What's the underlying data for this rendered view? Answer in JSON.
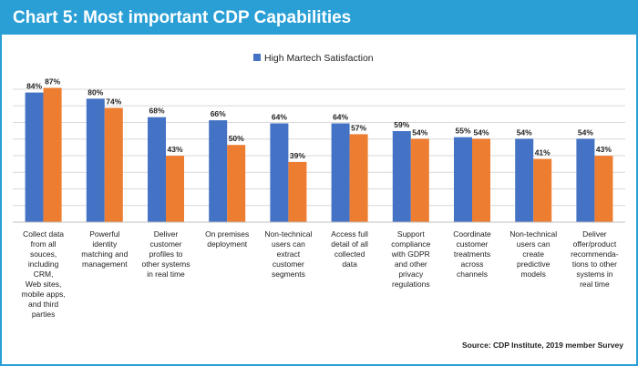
{
  "header": {
    "title": "Chart 5: Most important CDP Capabilities"
  },
  "source": "Source: CDP Institute, 2019 member Survey",
  "colors": {
    "accent": "#2a9fd6",
    "series_blue": "#4472c4",
    "series_orange": "#ed7d31",
    "grid": "#d9d9d9",
    "text": "#222222"
  },
  "chart_data": {
    "type": "bar",
    "title": "Chart 5: Most important CDP Capabilities",
    "xlabel": "",
    "ylabel": "",
    "ylim": [
      0,
      100
    ],
    "grid": true,
    "legend_placement": "top-center",
    "categories": [
      "Collect data from all souces, including CRM, Web sites, mobile apps, and third parties",
      "Powerful identity matching and management",
      "Deliver customer profiles to other systems in real time",
      "On premises deployment",
      "Non-technical users can extract customer segments",
      "Access full detail of all collected data",
      "Support compliance with GDPR and other privacy regulations",
      "Coordinate customer treatments across channels",
      "Non-technical users can create predictive models",
      "Deliver offer/product recommenda- tions to other systems in real time"
    ],
    "category_lines": [
      [
        "Collect data",
        "from all",
        "souces,",
        "including",
        "CRM,",
        "Web sites,",
        "mobile apps,",
        "and third",
        "parties"
      ],
      [
        "Powerful",
        "identity",
        "matching and",
        "management"
      ],
      [
        "Deliver",
        "customer",
        "profiles to",
        "other systems",
        "in real time"
      ],
      [
        "On premises",
        "deployment"
      ],
      [
        "Non-technical",
        "users can",
        "extract",
        "customer",
        "segments"
      ],
      [
        "Access full",
        "detail of all",
        "collected",
        "data"
      ],
      [
        "Support",
        "compliance",
        "with GDPR",
        "and other",
        "privacy",
        "regulations"
      ],
      [
        "Coordinate",
        "customer",
        "treatments",
        "across",
        "channels"
      ],
      [
        "Non-technical",
        "users can",
        "create",
        "predictive",
        "models"
      ],
      [
        "Deliver",
        "offer/product",
        "recommenda-",
        "tions to other",
        "systems in",
        "real time"
      ]
    ],
    "series": [
      {
        "name": "High Martech Satisfaction",
        "color": "#4472c4",
        "values": [
          84,
          80,
          68,
          66,
          64,
          64,
          59,
          55,
          54,
          54
        ],
        "labels": [
          "84%",
          "80%",
          "68%",
          "66%",
          "64%",
          "64%",
          "59%",
          "55%",
          "54%",
          "54%"
        ]
      },
      {
        "name": "",
        "color": "#ed7d31",
        "values": [
          87,
          74,
          43,
          50,
          39,
          57,
          54,
          54,
          41,
          43
        ],
        "labels": [
          "87%",
          "74%",
          "43%",
          "50%",
          "39%",
          "57%",
          "54%",
          "54%",
          "41%",
          "43%"
        ]
      }
    ]
  }
}
